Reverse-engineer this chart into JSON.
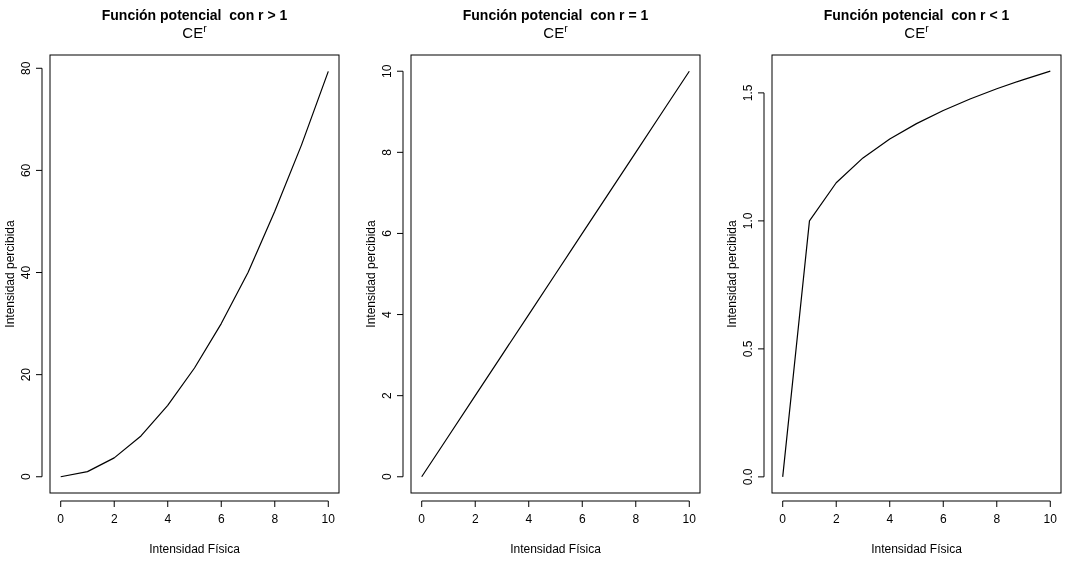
{
  "chart_data": [
    {
      "type": "line",
      "title": "Función potencial  con r > 1",
      "subtitle": "CE$^{r}$",
      "xlabel": "Intensidad Física",
      "ylabel": "Intensidad percibida",
      "x": [
        0,
        1,
        2,
        3,
        4,
        5,
        6,
        7,
        8,
        9,
        10
      ],
      "series": [
        {
          "color": "#000000",
          "values": [
            0,
            1,
            3.7,
            8,
            14,
            21.3,
            30,
            40,
            52,
            65,
            79.4
          ]
        }
      ],
      "xlim": [
        -0.4,
        10.4
      ],
      "xticks": [
        0,
        2,
        4,
        6,
        8,
        10
      ],
      "ylim": [
        -3.18,
        82.6
      ],
      "yticks": [
        0,
        20,
        40,
        60,
        80
      ],
      "grid": false,
      "marker": "none",
      "line_style": "solid"
    },
    {
      "type": "line",
      "title": "Función potencial  con r = 1",
      "subtitle": "CE$^{r}$",
      "xlabel": "Intensidad Física",
      "ylabel": "Intensidad percibida",
      "x": [
        0,
        1,
        2,
        3,
        4,
        5,
        6,
        7,
        8,
        9,
        10
      ],
      "series": [
        {
          "color": "#000000",
          "values": [
            0,
            1,
            2,
            3,
            4,
            5,
            6,
            7,
            8,
            9,
            10
          ]
        }
      ],
      "xlim": [
        -0.4,
        10.4
      ],
      "xticks": [
        0,
        2,
        4,
        6,
        8,
        10
      ],
      "ylim": [
        -0.4,
        10.4
      ],
      "yticks": [
        0,
        2,
        4,
        6,
        8,
        10
      ],
      "grid": false,
      "marker": "none",
      "line_style": "solid"
    },
    {
      "type": "line",
      "title": "Función potencial  con r < 1",
      "subtitle": "CE$^{r}$",
      "xlabel": "Intensidad Física",
      "ylabel": "Intensidad percibida",
      "x": [
        0,
        1,
        2,
        3,
        4,
        5,
        6,
        7,
        8,
        9,
        10
      ],
      "series": [
        {
          "color": "#000000",
          "values": [
            0,
            1,
            1.149,
            1.246,
            1.32,
            1.38,
            1.431,
            1.476,
            1.516,
            1.552,
            1.585
          ]
        }
      ],
      "xlim": [
        -0.4,
        10.4
      ],
      "xticks": [
        0,
        2,
        4,
        6,
        8,
        10
      ],
      "ylim": [
        -0.063,
        1.648
      ],
      "yticks": [
        {
          "value": 0,
          "label": "0.0"
        },
        {
          "value": 0.5,
          "label": "0.5"
        },
        {
          "value": 1,
          "label": "1.0"
        },
        {
          "value": 1.5,
          "label": "1.5"
        }
      ],
      "grid": false,
      "marker": "none",
      "line_style": "solid"
    }
  ]
}
